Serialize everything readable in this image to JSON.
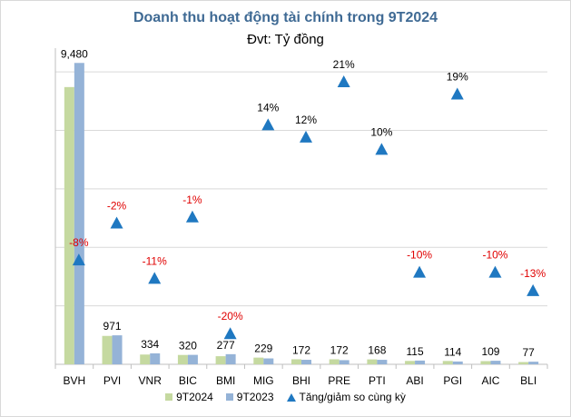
{
  "chart_data": {
    "type": "bar",
    "title": "Doanh thu hoạt động tài chính trong 9T2024",
    "subtitle": "Đvt: Tỷ đồng",
    "categories": [
      "BVH",
      "PVI",
      "VNR",
      "BIC",
      "BMI",
      "MIG",
      "BHI",
      "PRE",
      "PTI",
      "ABI",
      "PGI",
      "AIC",
      "BLI"
    ],
    "series": [
      {
        "name": "9T2024",
        "color": "#c5d9a0",
        "values": [
          9480,
          971,
          334,
          320,
          277,
          229,
          172,
          172,
          168,
          115,
          114,
          109,
          77
        ]
      },
      {
        "name": "9T2023",
        "color": "#95b3d7",
        "values": [
          10305,
          991,
          375,
          323,
          346,
          201,
          154,
          142,
          153,
          128,
          96,
          121,
          89
        ]
      }
    ],
    "value_labels": [
      "9,480",
      "971",
      "334",
      "320",
      "277",
      "229",
      "172",
      "172",
      "168",
      "115",
      "114",
      "109",
      "77"
    ],
    "change_series": {
      "name": "Tăng/giảm so cùng kỳ",
      "color": "#1f78c1",
      "values": [
        -8,
        -2,
        -11,
        -1,
        -20,
        14,
        12,
        21,
        10,
        -10,
        19,
        -10,
        -13
      ],
      "labels": [
        "-8%",
        "-2%",
        "-11%",
        "-1%",
        "-20%",
        "14%",
        "12%",
        "21%",
        "10%",
        "-10%",
        "19%",
        "-10%",
        "-13%"
      ],
      "positive_label_color": "#000000",
      "negative_label_color": "#e00000"
    },
    "ylim": [
      0,
      10500
    ],
    "change_ylim": [
      -25,
      25
    ],
    "grid": true,
    "legend_position": "bottom"
  }
}
